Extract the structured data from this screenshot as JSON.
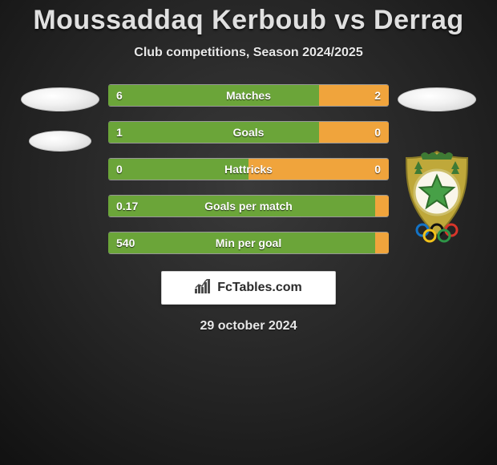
{
  "title": "Moussaddaq Kerboub vs Derrag",
  "subtitle": "Club competitions, Season 2024/2025",
  "date": "29 october 2024",
  "branding_text": "FcTables.com",
  "colors": {
    "left_bar": "#6ba539",
    "right_bar": "#f0a43c",
    "background_from": "#3a3a3a",
    "background_to": "#111111",
    "title_text": "#e0e0e0",
    "body_text": "#e8e8e8",
    "bar_text": "#ffffff"
  },
  "bars": {
    "label_fontsize": 14,
    "value_fontsize": 14,
    "height": 28,
    "gap": 18,
    "items": [
      {
        "label": "Matches",
        "left_value": "6",
        "right_value": "2",
        "left_pct": 75,
        "right_pct": 25
      },
      {
        "label": "Goals",
        "left_value": "1",
        "right_value": "0",
        "left_pct": 75,
        "right_pct": 25
      },
      {
        "label": "Hattricks",
        "left_value": "0",
        "right_value": "0",
        "left_pct": 50,
        "right_pct": 50
      },
      {
        "label": "Goals per match",
        "left_value": "0.17",
        "right_value": "",
        "left_pct": 95,
        "right_pct": 5
      },
      {
        "label": "Min per goal",
        "left_value": "540",
        "right_value": "",
        "left_pct": 95,
        "right_pct": 5
      }
    ]
  },
  "crest": {
    "outer_color": "#bfa83a",
    "tree_color": "#3e7a34",
    "star_border": "#2e6d2a",
    "star_fill": "#47a047",
    "rings": [
      "#1373c6",
      "#111111",
      "#d8352a",
      "#f2c21a",
      "#2e9447"
    ]
  }
}
